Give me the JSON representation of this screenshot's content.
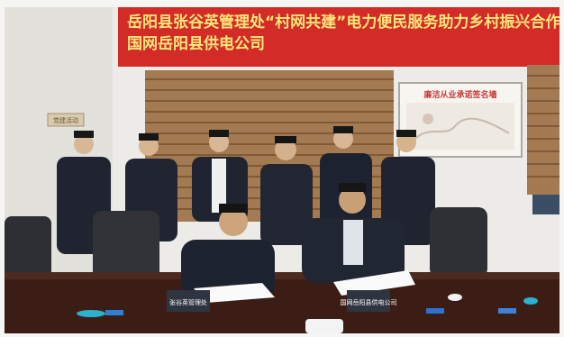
{
  "scene": {
    "banner": {
      "line1": "岳阳县张谷英管理处“村网共建”电力便民服务助力乡村振兴合作签约仪式",
      "line2": "国网岳阳县供电公司",
      "color": "#d32b27",
      "text_color": "#ffe77a"
    },
    "wall_board": {
      "title": "廉洁从业承诺签名墙"
    },
    "door_sign": {
      "text": "党建活动"
    },
    "table_plaques": {
      "left": "张谷英管理处",
      "right": "国网岳阳县供电公司"
    },
    "colors": {
      "wall": "#efeeea",
      "table": "#3b1d16",
      "suit": "#1f2430",
      "blinds": "#a47a52"
    }
  }
}
